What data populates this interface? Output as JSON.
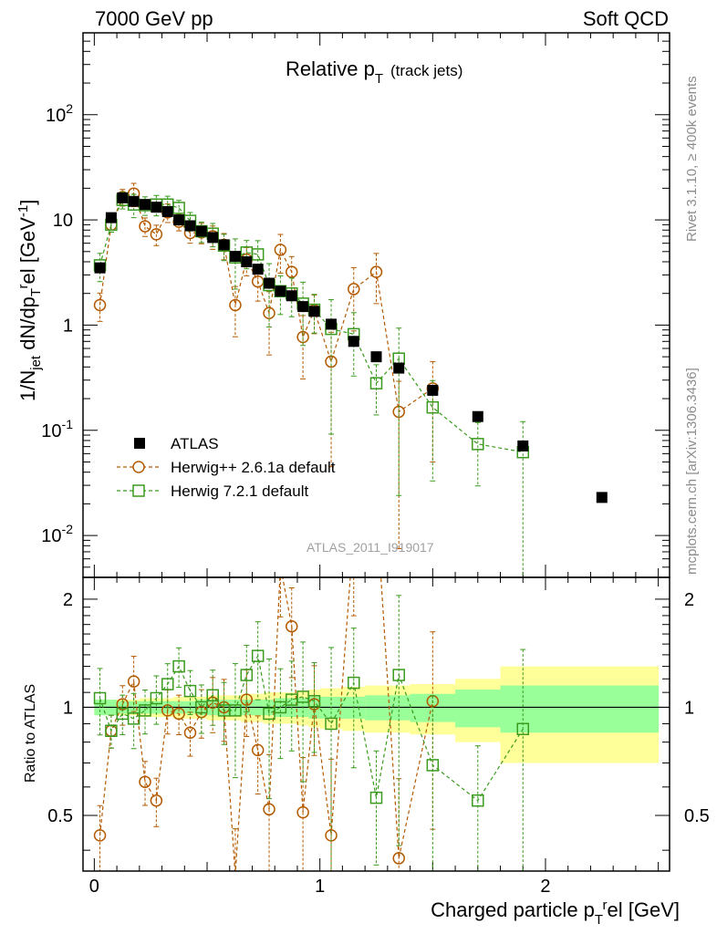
{
  "header": {
    "left_title": "7000 GeV pp",
    "right_title": "Soft QCD"
  },
  "side_labels": {
    "rivet": "Rivet 3.1.10, ≥ 400k events",
    "mcplots": "mcplots.cern.ch [arXiv:1306.3436]"
  },
  "chart_data": {
    "type": "scatter",
    "title": "Relative p_T (track jets)",
    "title_main": "Relative p",
    "title_sub": "T",
    "title_suffix": "(track jets)",
    "analysis_tag": "ATLAS_2011_I919017",
    "xlabel": "Charged particle p_T^rel [GeV]",
    "xlabel_main": "Charged particle p",
    "xlabel_sub": "T",
    "xlabel_sup": "r",
    "xlabel_rest": "el [GeV]",
    "ylabel": "1/N_jet dN/dp_T^rel [GeV^-1]",
    "ratio_ylabel": "Ratio to ATLAS",
    "xlim": [
      -0.05,
      2.55
    ],
    "ylim": [
      0.004,
      600
    ],
    "ratio_ylim": [
      0.35,
      2.3
    ],
    "yscale": "log",
    "x_ticks": [
      "0",
      "1",
      "2"
    ],
    "y_ticks": [
      "10^-2",
      "10^-1",
      "1",
      "10",
      "10^2"
    ],
    "ratio_ticks": [
      "0.5",
      "1",
      "2"
    ],
    "legend_position": "bottom-left",
    "series": [
      {
        "name": "ATLAS",
        "marker": "filled-square",
        "color": "#000000",
        "x": [
          0.025,
          0.075,
          0.125,
          0.175,
          0.225,
          0.275,
          0.325,
          0.375,
          0.425,
          0.475,
          0.525,
          0.575,
          0.625,
          0.675,
          0.725,
          0.775,
          0.825,
          0.875,
          0.925,
          0.975,
          1.05,
          1.15,
          1.25,
          1.35,
          1.5,
          1.7,
          1.9,
          2.25
        ],
        "y": [
          3.5,
          10.5,
          16.2,
          15.0,
          14.0,
          13.2,
          12.0,
          10.0,
          8.8,
          7.8,
          6.8,
          5.8,
          4.5,
          4.0,
          3.4,
          2.5,
          2.1,
          1.9,
          1.5,
          1.35,
          1.02,
          0.7,
          0.5,
          0.39,
          0.24,
          0.135,
          0.071,
          0.023
        ]
      },
      {
        "name": "Herwig++ 2.6.1a default",
        "marker": "open-circle",
        "color": "#b35a00",
        "x": [
          0.025,
          0.075,
          0.125,
          0.175,
          0.225,
          0.275,
          0.325,
          0.375,
          0.425,
          0.475,
          0.525,
          0.575,
          0.625,
          0.675,
          0.725,
          0.775,
          0.825,
          0.875,
          0.925,
          0.975,
          1.05,
          1.15,
          1.25,
          1.35,
          1.5
        ],
        "y": [
          1.55,
          9.0,
          16.5,
          17.8,
          8.7,
          7.3,
          11.8,
          9.6,
          7.5,
          7.6,
          7.0,
          5.8,
          1.55,
          4.2,
          2.6,
          1.3,
          5.2,
          3.2,
          0.77,
          1.38,
          0.45,
          2.2,
          3.2,
          0.15,
          0.25
        ],
        "ratio": [
          0.44,
          0.86,
          1.02,
          1.18,
          0.62,
          0.55,
          0.98,
          0.96,
          0.85,
          0.97,
          1.03,
          1.0,
          0.34,
          1.05,
          0.76,
          0.52,
          2.48,
          1.68,
          0.51,
          1.02,
          0.44,
          3.1,
          6.4,
          0.38,
          1.04
        ]
      },
      {
        "name": "Herwig 7.2.1 default",
        "marker": "open-square",
        "color": "#3a9a1e",
        "x": [
          0.025,
          0.075,
          0.125,
          0.175,
          0.225,
          0.275,
          0.325,
          0.375,
          0.425,
          0.475,
          0.525,
          0.575,
          0.625,
          0.675,
          0.725,
          0.775,
          0.825,
          0.875,
          0.925,
          0.975,
          1.05,
          1.15,
          1.25,
          1.35,
          1.5,
          1.7,
          1.9
        ],
        "y": [
          3.7,
          9.0,
          15.5,
          14.0,
          13.8,
          14.0,
          14.0,
          13.0,
          9.8,
          7.8,
          7.4,
          5.7,
          4.4,
          4.9,
          4.7,
          2.4,
          2.1,
          2.0,
          1.6,
          1.4,
          0.92,
          0.82,
          0.28,
          0.48,
          0.165,
          0.074,
          0.062
        ],
        "ratio": [
          1.06,
          0.86,
          0.96,
          0.93,
          0.98,
          1.06,
          1.16,
          1.3,
          1.11,
          1.0,
          1.08,
          0.98,
          0.98,
          1.23,
          1.39,
          0.96,
          1.0,
          1.05,
          1.07,
          1.04,
          0.9,
          1.17,
          0.56,
          1.23,
          0.69,
          0.55,
          0.87
        ]
      }
    ]
  }
}
